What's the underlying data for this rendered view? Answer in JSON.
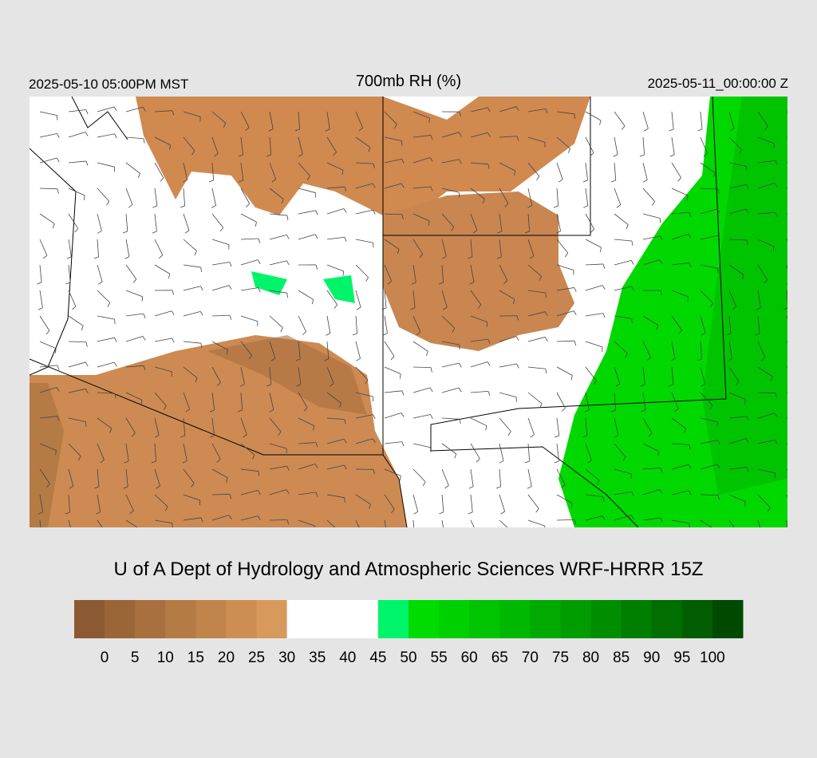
{
  "header": {
    "valid_local": "2025-05-10 05:00PM MST",
    "title": "700mb RH (%)",
    "valid_utc": "2025-05-11_00:00:00 Z"
  },
  "credit": "U of A Dept of Hydrology and Atmospheric Sciences WRF-HRRR 15Z",
  "colorbar": {
    "labels": [
      0,
      5,
      10,
      15,
      20,
      25,
      30,
      35,
      40,
      45,
      50,
      55,
      60,
      65,
      70,
      75,
      80,
      85,
      90,
      95,
      100
    ],
    "colors": [
      "#8b5a33",
      "#9a6638",
      "#a8703f",
      "#b57b45",
      "#c1844b",
      "#cc8e53",
      "#d8995c",
      "#ffffff",
      "#ffffff",
      "#ffffff",
      "#00f46a",
      "#00dc00",
      "#00d000",
      "#00c400",
      "#00b800",
      "#00aa00",
      "#009c00",
      "#008e00",
      "#007e00",
      "#006e00",
      "#005e00",
      "#004a00"
    ]
  }
}
